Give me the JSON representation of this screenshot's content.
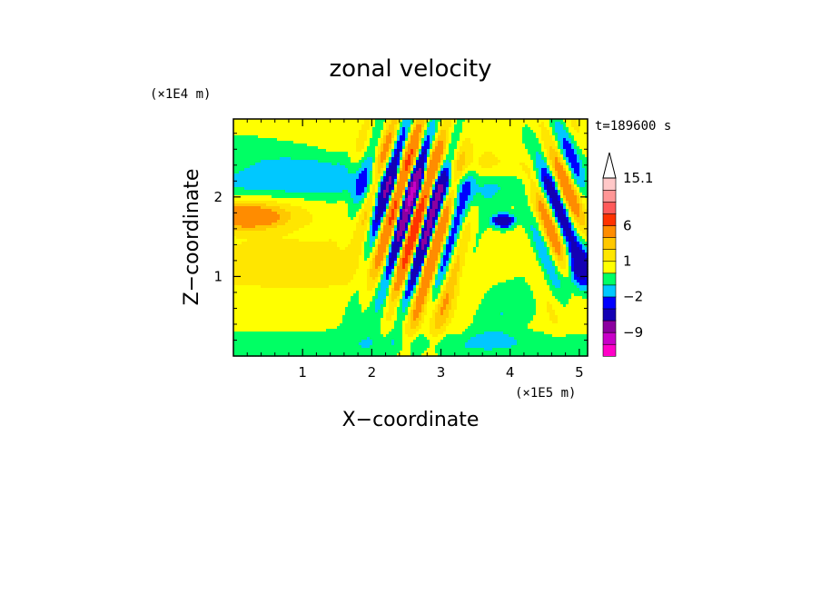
{
  "chart_data": {
    "type": "heatmap",
    "title": "zonal velocity",
    "xlabel": "X−coordinate",
    "ylabel": "Z−coordinate",
    "x_scale_note": "(×1E5 m)",
    "y_scale_note": "(×1E4 m)",
    "time_label": "t=189600 s",
    "xlim": [
      0,
      5.12
    ],
    "ylim": [
      0,
      2.98
    ],
    "x_ticks": [
      {
        "value": 1,
        "label": "1"
      },
      {
        "value": 2,
        "label": "2"
      },
      {
        "value": 3,
        "label": "3"
      },
      {
        "value": 4,
        "label": "4"
      },
      {
        "value": 5,
        "label": "5"
      }
    ],
    "y_ticks": [
      {
        "value": 1,
        "label": "1"
      },
      {
        "value": 2,
        "label": "2"
      }
    ],
    "colorbar": {
      "levels": [
        -15,
        -12,
        -9,
        -6,
        -3,
        -2,
        -1,
        0,
        1,
        2,
        3,
        6,
        9,
        12,
        15.1
      ],
      "colors": [
        "#ff00c8",
        "#c800c8",
        "#8c00a0",
        "#1400b4",
        "#0000ff",
        "#00c8ff",
        "#00ff64",
        "#ffff00",
        "#ffe600",
        "#ffc800",
        "#ff8c00",
        "#ff3200",
        "#ff5a5a",
        "#ff9696",
        "#ffc8c8"
      ],
      "labels": [
        {
          "value": 15.1,
          "label": "15.1"
        },
        {
          "value": 6,
          "label": "6"
        },
        {
          "value": 1,
          "label": "1"
        },
        {
          "value": -2,
          "label": "−2"
        },
        {
          "value": -9,
          "label": "−9"
        }
      ],
      "extend": "max"
    }
  }
}
